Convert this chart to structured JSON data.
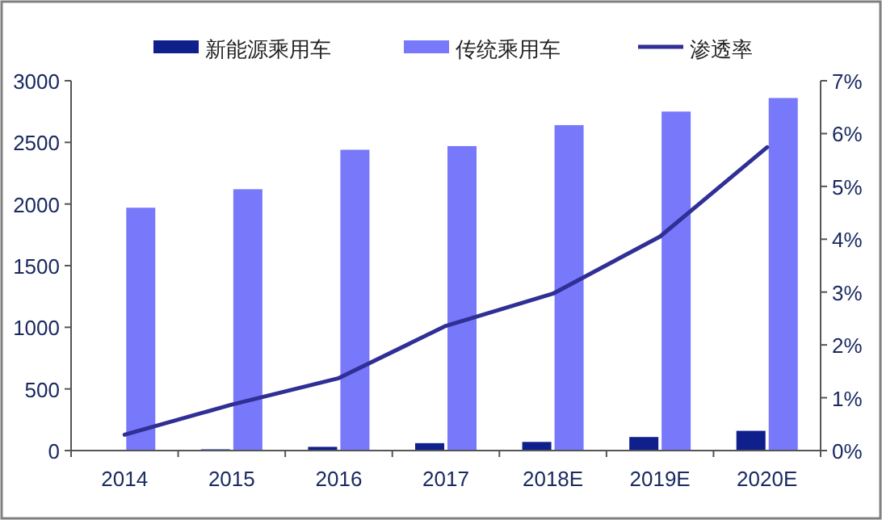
{
  "chart_data": {
    "type": "bar",
    "categories": [
      "2014",
      "2015",
      "2016",
      "2017",
      "2018E",
      "2019E",
      "2020E"
    ],
    "series": [
      {
        "name": "新能源乘用车",
        "color": "#0f1f8c",
        "values": [
          0,
          10,
          30,
          60,
          70,
          110,
          160
        ]
      },
      {
        "name": "传统乘用车",
        "color": "#7878fa",
        "values": [
          1970,
          2120,
          2440,
          2470,
          2640,
          2750,
          2860
        ]
      },
      {
        "name": "渗透率",
        "type": "line",
        "axis": "y2",
        "color": "#2f2f96",
        "values": [
          0.3,
          0.87,
          1.37,
          2.36,
          2.97,
          4.05,
          5.74
        ]
      }
    ],
    "ylim": [
      0,
      3000
    ],
    "yticks": [
      0,
      500,
      1000,
      1500,
      2000,
      2500,
      3000
    ],
    "y2lim": [
      0,
      7
    ],
    "y2ticks": [
      {
        "value": 0,
        "label": "0%"
      },
      {
        "value": 1,
        "label": "1%"
      },
      {
        "value": 2,
        "label": "2%"
      },
      {
        "value": 3,
        "label": "3%"
      },
      {
        "value": 4,
        "label": "4%"
      },
      {
        "value": 5,
        "label": "5%"
      },
      {
        "value": 6,
        "label": "6%"
      },
      {
        "value": 7,
        "label": "7%"
      }
    ],
    "grid": false,
    "legend": "top"
  }
}
